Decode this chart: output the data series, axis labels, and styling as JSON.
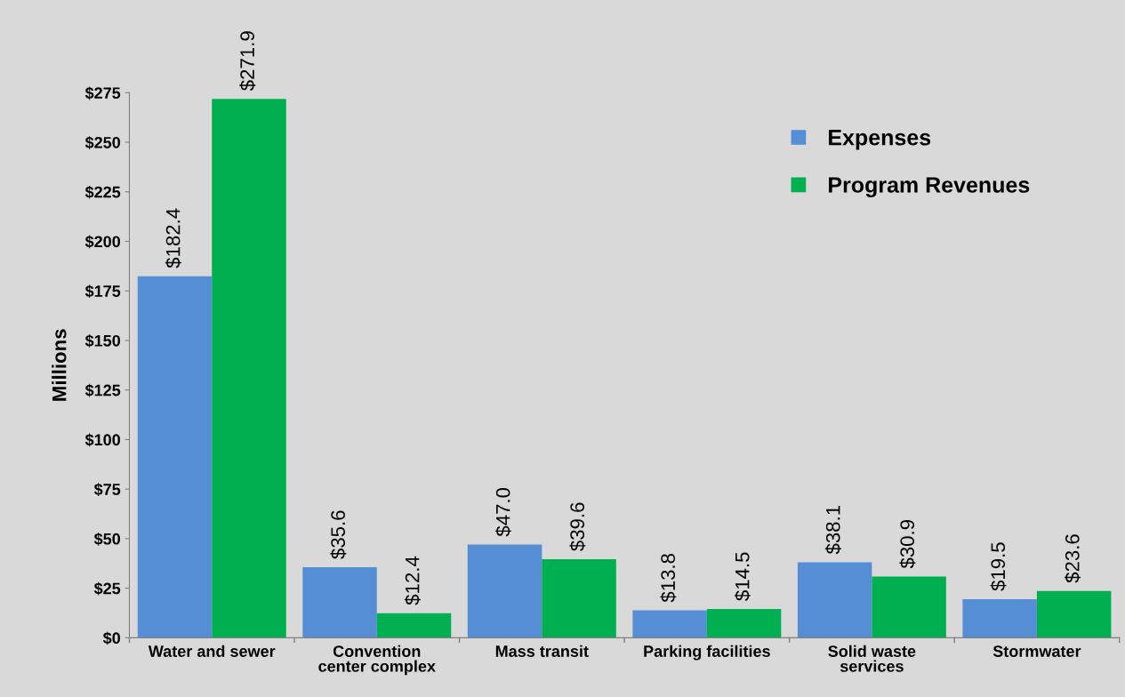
{
  "chart_data": {
    "type": "bar",
    "ylabel": "Millions",
    "categories": [
      "Water and sewer",
      "Convention\ncenter complex",
      "Mass transit",
      "Parking facilities",
      "Solid waste\nservices",
      "Stormwater"
    ],
    "series": [
      {
        "name": "Expenses",
        "color": "#558ed5",
        "values": [
          182.4,
          35.6,
          47.0,
          13.8,
          38.1,
          19.5
        ],
        "value_labels": [
          "$182.4",
          "$35.6",
          "$47.0",
          "$13.8",
          "$38.1",
          "$19.5"
        ]
      },
      {
        "name": "Program Revenues",
        "color": "#00b050",
        "values": [
          271.9,
          12.4,
          39.6,
          14.5,
          30.9,
          23.6
        ],
        "value_labels": [
          "$271.9",
          "$12.4",
          "$39.6",
          "$14.5",
          "$30.9",
          "$23.6"
        ]
      }
    ],
    "ylim": [
      0,
      275
    ],
    "yticks": [
      {
        "value": 0,
        "label": "$0"
      },
      {
        "value": 25,
        "label": "$25"
      },
      {
        "value": 50,
        "label": "$50"
      },
      {
        "value": 75,
        "label": "$75"
      },
      {
        "value": 100,
        "label": "$100"
      },
      {
        "value": 125,
        "label": "$125"
      },
      {
        "value": 150,
        "label": "$150"
      },
      {
        "value": 175,
        "label": "$175"
      },
      {
        "value": 200,
        "label": "$200"
      },
      {
        "value": 225,
        "label": "$225"
      },
      {
        "value": 250,
        "label": "$250"
      },
      {
        "value": 275,
        "label": "$275"
      }
    ],
    "grid": false,
    "legend": "top right"
  }
}
